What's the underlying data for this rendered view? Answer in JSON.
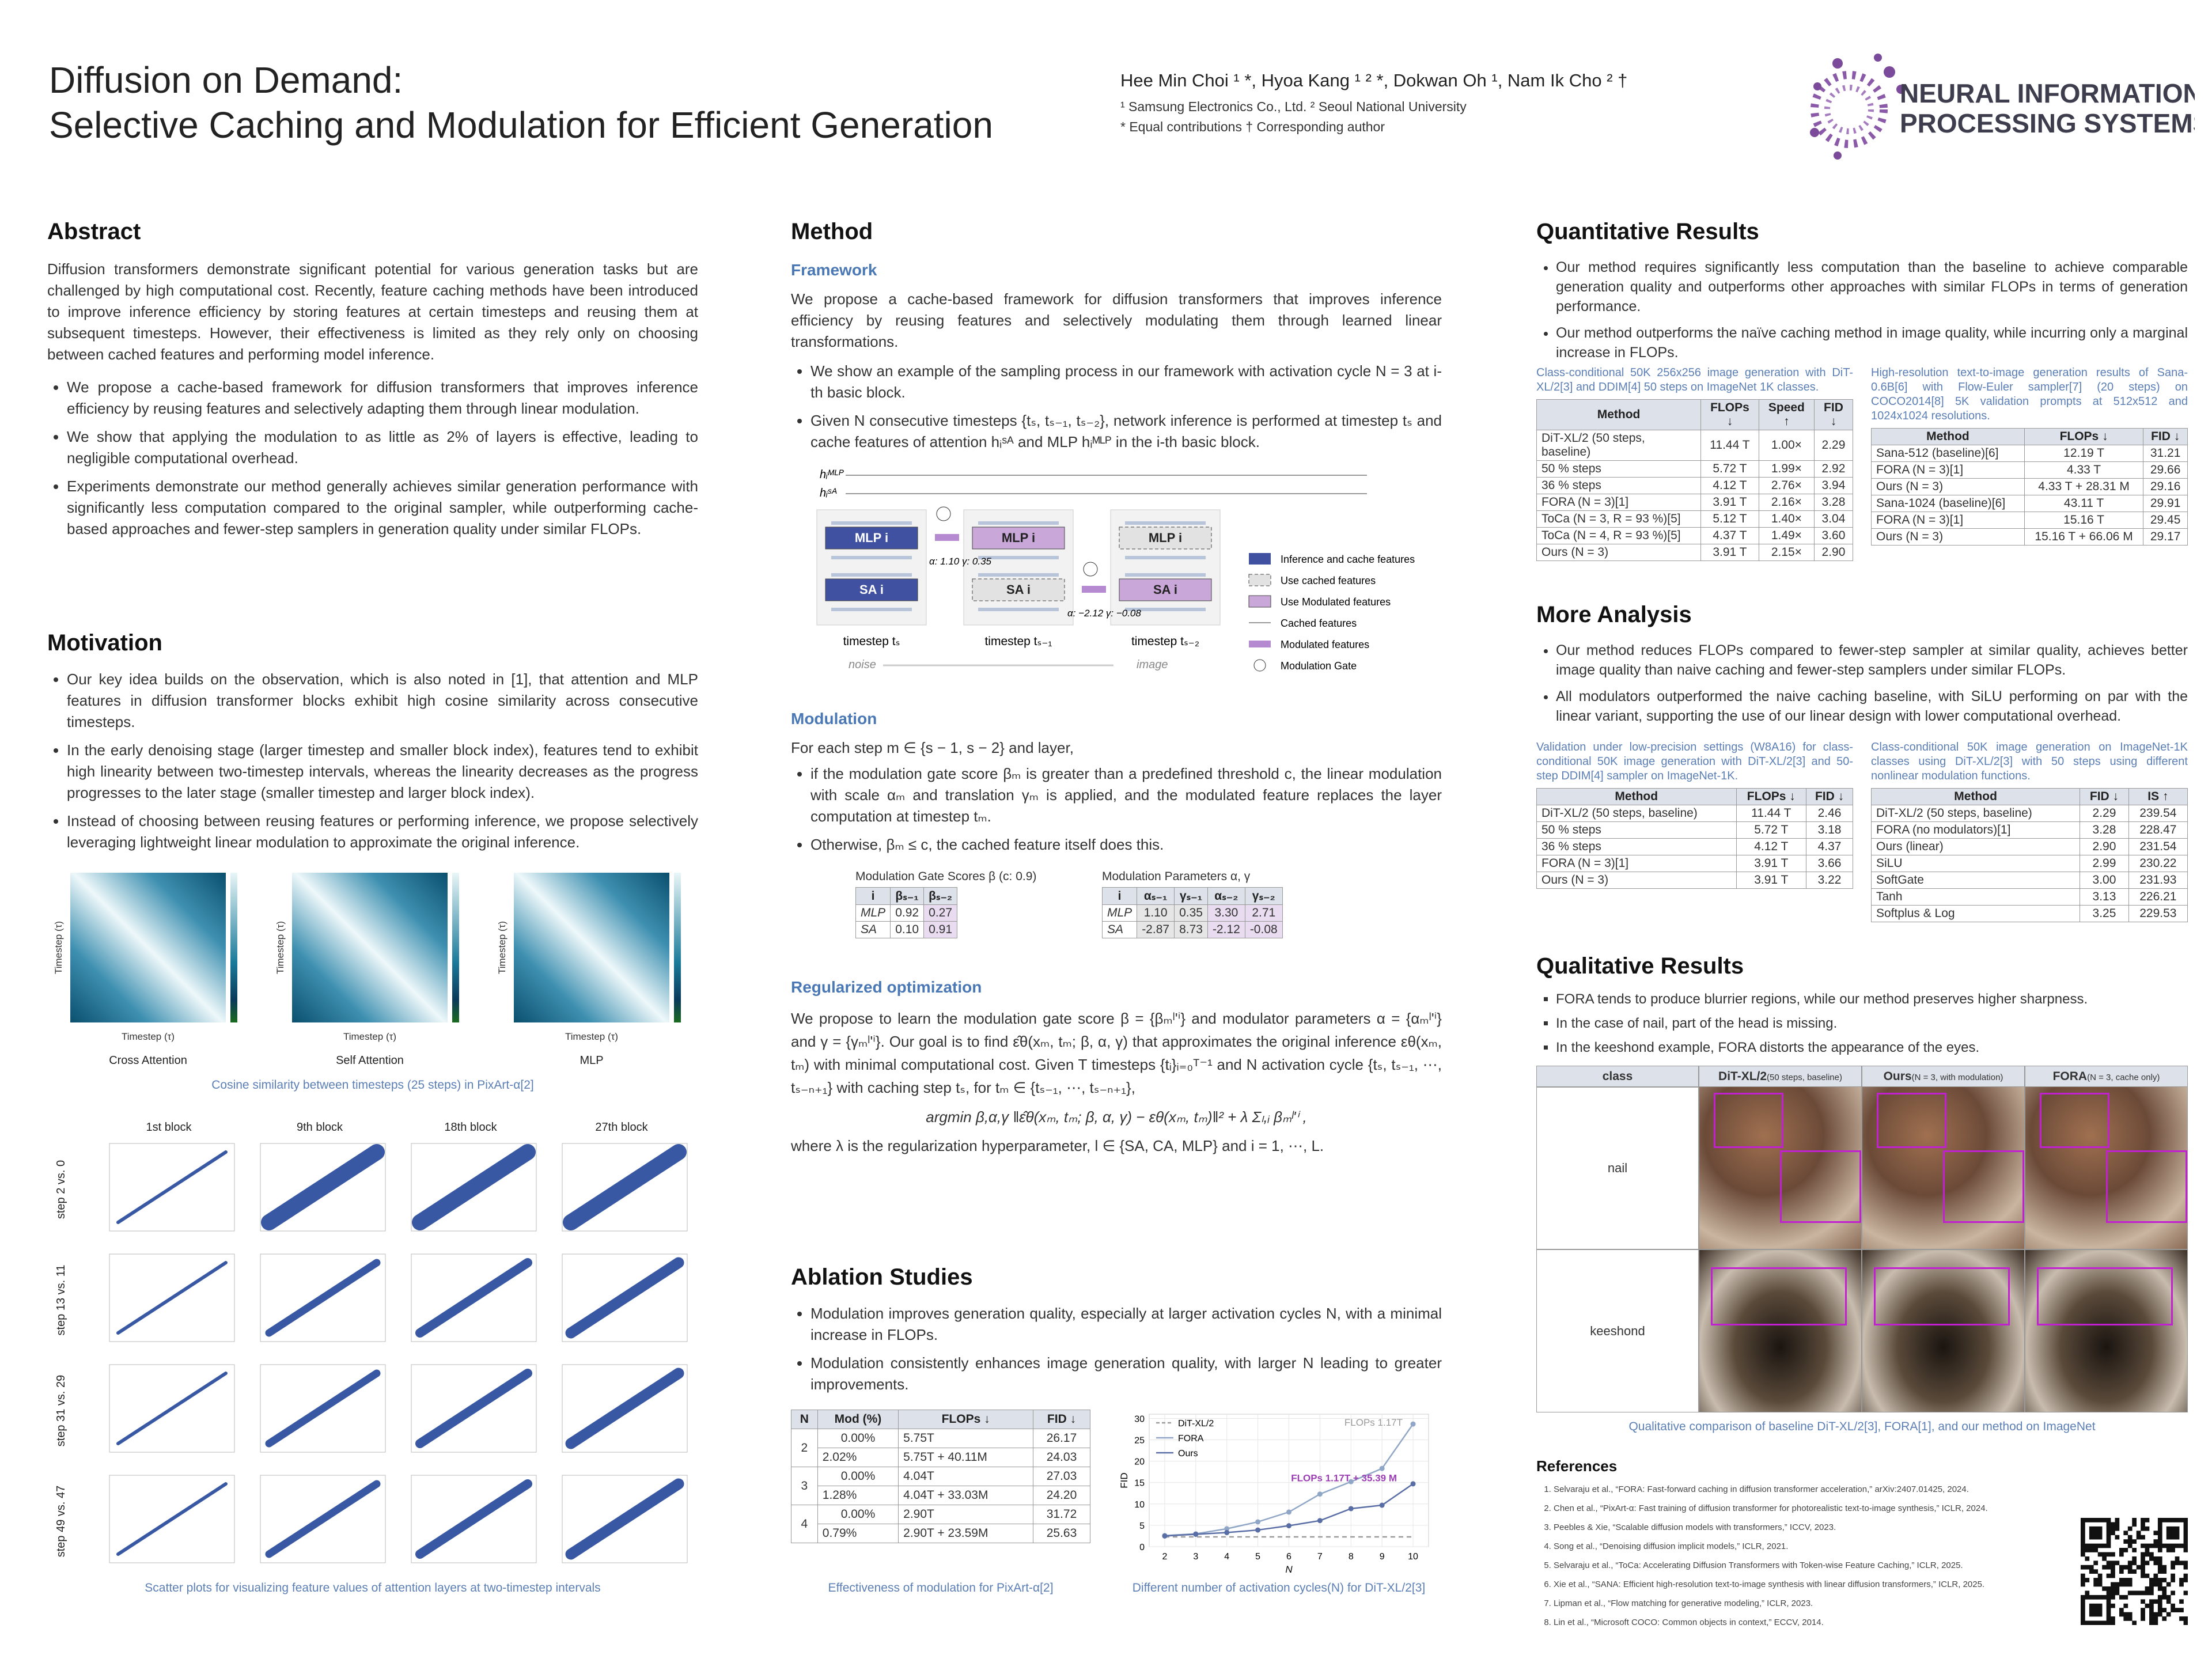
{
  "header": {
    "title_line1": "Diffusion on Demand:",
    "title_line2": "Selective Caching and Modulation for Efficient Generation",
    "authors": "Hee Min Choi ¹ *, Hyoa Kang ¹ ² *, Dokwan Oh ¹, Nam Ik Cho ² †",
    "affiliations": "¹ Samsung Electronics Co., Ltd.    ² Seoul National University",
    "notes": "* Equal contributions    † Corresponding author",
    "logo_line1": "NEURAL INFORMATION",
    "logo_line2": "PROCESSING SYSTEMS"
  },
  "abstract": {
    "heading": "Abstract",
    "text": "Diffusion transformers demonstrate significant potential for various generation tasks but are challenged by high computational cost. Recently, feature caching methods have been introduced to improve inference efficiency by storing features at certain timesteps and reusing them at subsequent timesteps. However, their effectiveness is limited as they rely only on choosing between cached features and performing model inference.",
    "bullets": [
      "We propose a cache-based framework for diffusion transformers that improves inference efficiency by reusing features and selectively adapting them through linear modulation.",
      "We show that applying the modulation to as little as 2% of layers is effective, leading to negligible computational overhead.",
      "Experiments demonstrate our method generally achieves similar generation performance with significantly less computation compared to the original sampler, while outperforming cache-based approaches and fewer-step samplers in generation quality under similar FLOPs."
    ]
  },
  "motivation": {
    "heading": "Motivation",
    "bullets": [
      "Our key idea builds on the observation, which is also noted in [1], that attention and MLP features in diffusion transformer blocks exhibit high cosine similarity across consecutive timesteps.",
      "In the early denoising stage (larger timestep and smaller block index), features tend to exhibit high linearity between two-timestep intervals, whereas the linearity decreases as the progress progresses to the later stage (smaller timestep and larger block index).",
      "Instead of choosing between reusing features or performing inference, we propose selectively leveraging lightweight linear modulation to approximate the original inference."
    ],
    "heatmap_axis": "Timestep (τ)",
    "heatmap_labels": [
      "Cross Attention",
      "Self Attention",
      "MLP"
    ],
    "heatmap_caption": "Cosine similarity between timesteps (25 steps) in PixArt-α[2]",
    "scatter_columns": [
      "1st block",
      "9th block",
      "18th block",
      "27th block"
    ],
    "scatter_rows": [
      "step 2 vs. 0",
      "step 13 vs. 11",
      "step 31 vs. 29",
      "step 49 vs. 47"
    ],
    "scatter_caption": "Scatter plots for visualizing feature values of attention layers at two-timestep intervals"
  },
  "method": {
    "heading": "Method",
    "framework_heading": "Framework",
    "framework_text": "We propose a cache-based framework for diffusion transformers that improves inference efficiency by reusing features and selectively modulating them through learned linear transformations.",
    "framework_bullets": [
      "We show an example of the sampling process in our framework with activation cycle N = 3 at i-th basic block.",
      "Given N consecutive timesteps {tₛ, tₛ₋₁, tₛ₋₂}, network inference is performed at timestep tₛ and cache features of attention hᵢˢᴬ and MLP hᵢᴹᴸᴾ in the i-th basic block."
    ],
    "diagram": {
      "h_mlp": "hᵢᴹᴸᴾ",
      "h_sa": "hᵢˢᴬ",
      "mlp": "MLP i",
      "sa": "SA i",
      "steps": [
        "timestep tₛ",
        "timestep tₛ₋₁",
        "timestep tₛ₋₂"
      ],
      "mod1": "α: 1.10  γ: 0.35",
      "mod2": "α: −2.12  γ: −0.08",
      "noise": "noise",
      "image": "image",
      "legend": [
        "Inference and cache features",
        "Use cached features",
        "Use Modulated features",
        "Cached features",
        "Modulated features",
        "Modulation Gate"
      ]
    },
    "modulation_heading": "Modulation",
    "modulation_intro": "For each step m ∈ {s − 1, s − 2} and layer,",
    "modulation_bullets": [
      "if the modulation gate score βₘ is greater than a predefined threshold c, the linear modulation with scale αₘ and translation γₘ is applied, and the modulated feature replaces the layer computation at timestep tₘ.",
      "Otherwise, βₘ ≤ c, the cached feature itself does this."
    ],
    "gate_table": {
      "title": "Modulation Gate Scores β (c: 0.9)",
      "header": [
        "i",
        "βₛ₋₁",
        "βₛ₋₂"
      ],
      "rows": [
        [
          "MLP",
          "0.92",
          "0.27"
        ],
        [
          "SA",
          "0.10",
          "0.91"
        ]
      ]
    },
    "param_table": {
      "title": "Modulation Parameters α, γ",
      "header": [
        "i",
        "αₛ₋₁",
        "γₛ₋₁",
        "αₛ₋₂",
        "γₛ₋₂"
      ],
      "rows": [
        [
          "MLP",
          "1.10",
          "0.35",
          "3.30",
          "2.71"
        ],
        [
          "SA",
          "-2.87",
          "8.73",
          "-2.12",
          "-0.08"
        ]
      ]
    },
    "reg_heading": "Regularized optimization",
    "reg_text1": "We propose to learn the modulation gate score β = {βₘˡ'ⁱ} and modulator parameters α = {αₘˡ'ⁱ} and γ = {γₘˡ'ⁱ}. Our goal is to find ε̂θ(xₘ, tₘ; β, α, γ) that approximates the original inference εθ(xₘ, tₘ) with minimal computational cost. Given T timesteps {tᵢ}ᵢ₌₀ᵀ⁻¹ and N activation cycle {tₛ, tₛ₋₁, ⋯, tₛ₋ₙ₊₁} with caching step tₛ, for tₘ ∈ {tₛ₋₁, ⋯, tₛ₋ₙ₊₁},",
    "reg_eq": "argmin β,α,γ ‖ε̂θ(xₘ, tₘ; β, α, γ) − εθ(xₘ, tₘ)‖² + λ Σₗ,ᵢ βₘˡ'ⁱ ,",
    "reg_text2": "where λ is the regularization hyperparameter, l ∈ {SA, CA, MLP} and i = 1, ⋯, L."
  },
  "ablation": {
    "heading": "Ablation Studies",
    "bullets": [
      "Modulation improves generation quality, especially at larger activation cycles N, with a minimal increase in FLOPs.",
      "Modulation consistently enhances image generation quality, with larger N leading to greater improvements."
    ],
    "table": {
      "header": [
        "N",
        "Mod (%)",
        "FLOPs ↓",
        "FID ↓"
      ],
      "groups": [
        {
          "n": "2",
          "rows": [
            [
              "0.00%",
              "5.75T",
              "26.17"
            ],
            [
              "2.02%",
              "5.75T + 40.11M",
              "24.03"
            ]
          ]
        },
        {
          "n": "3",
          "rows": [
            [
              "0.00%",
              "4.04T",
              "27.03"
            ],
            [
              "1.28%",
              "4.04T + 33.03M",
              "24.20"
            ]
          ]
        },
        {
          "n": "4",
          "rows": [
            [
              "0.00%",
              "2.90T",
              "31.72"
            ],
            [
              "0.79%",
              "2.90T + 23.59M",
              "25.63"
            ]
          ]
        }
      ]
    },
    "table_caption": "Effectiveness of modulation for PixArt-α[2]",
    "chart_caption": "Different number of activation cycles(N) for DiT-XL/2[3]",
    "chart": {
      "type": "line",
      "x_label": "N",
      "y_label": "FID",
      "x": [
        2,
        3,
        4,
        5,
        6,
        7,
        8,
        9,
        10
      ],
      "xlim": [
        1.5,
        10.5
      ],
      "xticks": [
        2,
        3,
        4,
        5,
        6,
        7,
        8,
        9,
        10
      ],
      "ylim": [
        0,
        31
      ],
      "yticks": [
        0,
        5,
        10,
        15,
        20,
        25,
        30
      ],
      "grid": true,
      "series": [
        {
          "name": "DiT-XL/2",
          "color": "#9a9a9a",
          "dashed": true,
          "values": [
            2.29,
            2.29,
            2.29,
            2.29,
            2.29,
            2.29,
            2.29,
            2.29,
            2.29
          ]
        },
        {
          "name": "FORA",
          "color": "#8fa6c6",
          "values": [
            2.6,
            3.0,
            4.2,
            5.8,
            8.1,
            12.3,
            15.2,
            18.3,
            28.7
          ]
        },
        {
          "name": "Ours",
          "color": "#5a6ea6",
          "values": [
            2.5,
            2.9,
            3.3,
            3.9,
            4.9,
            6.1,
            8.9,
            9.7,
            14.7
          ]
        }
      ],
      "annotations": [
        "FLOPs 1.17T",
        "FLOPs 1.17T + 35.39 M"
      ]
    }
  },
  "quantitative": {
    "heading": "Quantitative Results",
    "bullets": [
      "Our method requires significantly less computation than the baseline to achieve comparable generation quality and outperforms other approaches with similar FLOPs in terms of generation performance.",
      "Our method outperforms the naïve caching method in image quality, while incurring only a marginal increase in FLOPs."
    ],
    "table1": {
      "caption": "Class-conditional 50K 256x256 image generation with DiT-XL/2[3] and DDIM[4] 50 steps on ImageNet 1K classes.",
      "header": [
        "Method",
        "FLOPs ↓",
        "Speed ↑",
        "FID ↓"
      ],
      "rows": [
        [
          "DiT-XL/2 (50 steps, baseline)",
          "11.44 T",
          "1.00×",
          "2.29"
        ],
        [
          "50 % steps",
          "5.72 T",
          "1.99×",
          "2.92"
        ],
        [
          "36 % steps",
          "4.12 T",
          "2.76×",
          "3.94"
        ],
        [
          "FORA (N = 3)[1]",
          "3.91 T",
          "2.16×",
          "3.28"
        ],
        [
          "ToCa (N = 3, R = 93 %)[5]",
          "5.12 T",
          "1.40×",
          "3.04"
        ],
        [
          "ToCa (N = 4, R = 93 %)[5]",
          "4.37 T",
          "1.49×",
          "3.60"
        ],
        [
          "Ours (N = 3)",
          "3.91 T",
          "2.15×",
          "2.90"
        ]
      ]
    },
    "table2": {
      "caption": "High-resolution text-to-image generation results of Sana-0.6B[6] with Flow-Euler sampler[7] (20 steps) on COCO2014[8] 5K validation prompts at 512x512 and 1024x1024 resolutions.",
      "header": [
        "Method",
        "FLOPs ↓",
        "FID ↓"
      ],
      "rows": [
        [
          "Sana-512 (baseline)[6]",
          "12.19 T",
          "31.21"
        ],
        [
          "FORA (N = 3)[1]",
          "4.33 T",
          "29.66"
        ],
        [
          "Ours (N = 3)",
          "4.33 T + 28.31 M",
          "29.16"
        ],
        [
          "Sana-1024 (baseline)[6]",
          "43.11 T",
          "29.91"
        ],
        [
          "FORA (N = 3)[1]",
          "15.16 T",
          "29.45"
        ],
        [
          "Ours (N = 3)",
          "15.16 T + 66.06 M",
          "29.17"
        ]
      ]
    }
  },
  "more_analysis": {
    "heading": "More Analysis",
    "bullets": [
      "Our method reduces FLOPs compared to fewer-step sampler at similar quality, achieves better image quality than naive caching and fewer-step samplers under similar FLOPs.",
      "All modulators outperformed the naive caching baseline, with SiLU performing on par with the linear variant, supporting the use of our linear design with lower computational overhead."
    ],
    "table1": {
      "caption": "Validation under low-precision settings (W8A16) for class-conditional 50K image generation with DiT-XL/2[3] and 50-step DDIM[4] sampler on ImageNet-1K.",
      "header": [
        "Method",
        "FLOPs ↓",
        "FID ↓"
      ],
      "rows": [
        [
          "DiT-XL/2 (50 steps, baseline)",
          "11.44 T",
          "2.46"
        ],
        [
          "50 % steps",
          "5.72 T",
          "3.18"
        ],
        [
          "36 % steps",
          "4.12 T",
          "4.37"
        ],
        [
          "FORA (N = 3)[1]",
          "3.91 T",
          "3.66"
        ],
        [
          "Ours (N = 3)",
          "3.91 T",
          "3.22"
        ]
      ]
    },
    "table2": {
      "caption": "Class-conditional 50K image generation on ImageNet-1K classes using DiT-XL/2[3] with 50 steps using different nonlinear modulation functions.",
      "header": [
        "Method",
        "FID ↓",
        "IS ↑"
      ],
      "rows": [
        [
          "DiT-XL/2 (50 steps, baseline)",
          "2.29",
          "239.54"
        ],
        [
          "FORA (no modulators)[1]",
          "3.28",
          "228.47"
        ],
        [
          "Ours (linear)",
          "2.90",
          "231.54"
        ],
        [
          "SiLU",
          "2.99",
          "230.22"
        ],
        [
          "SoftGate",
          "3.00",
          "231.93"
        ],
        [
          "Tanh",
          "3.13",
          "226.21"
        ],
        [
          "Softplus & Log",
          "3.25",
          "229.53"
        ]
      ]
    }
  },
  "qualitative": {
    "heading": "Qualitative Results",
    "bullets": [
      "FORA tends to produce blurrier regions, while our method preserves higher sharpness.",
      "In the case of nail, part of the head is missing.",
      "In the keeshond example, FORA distorts the appearance of the eyes."
    ],
    "header": [
      {
        "name": "class"
      },
      {
        "name": "DiT-XL/2",
        "note": "(50 steps, baseline)"
      },
      {
        "name": "Ours",
        "note": "(N = 3, with modulation)"
      },
      {
        "name": "FORA",
        "note": "(N = 3, cache only)"
      }
    ],
    "rows": [
      "nail",
      "keeshond"
    ],
    "caption": "Qualitative comparison of baseline DiT-XL/2[3], FORA[1], and our method on ImageNet"
  },
  "references": {
    "heading": "References",
    "items": [
      "Selvaraju et al., “FORA: Fast-forward caching in diffusion transformer acceleration,” arXiv:2407.01425, 2024.",
      "Chen et al., “PixArt-α: Fast training of diffusion transformer for photorealistic text-to-image synthesis,” ICLR, 2024.",
      "Peebles & Xie, “Scalable diffusion models with transformers,” ICCV, 2023.",
      "Song et al., “Denoising diffusion implicit models,” ICLR, 2021.",
      "Selvaraju et al., “ToCa: Accelerating Diffusion Transformers with Token-wise Feature Caching,” ICLR, 2025.",
      "Xie et al., “SANA: Efficient high-resolution text-to-image synthesis with linear diffusion transformers,” ICLR, 2025.",
      "Lipman et al., “Flow matching for generative modeling,” ICLR, 2023.",
      "Lin et al., “Microsoft COCO: Common objects in context,” ECCV, 2014."
    ]
  }
}
